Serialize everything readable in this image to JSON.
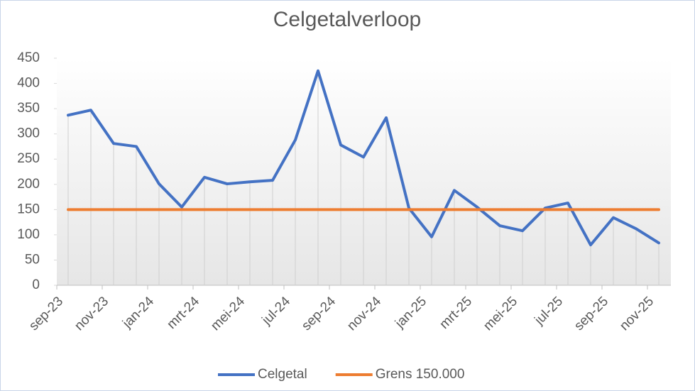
{
  "chart_data": {
    "type": "line",
    "title": "Celgetalverloop",
    "categories": [
      "sep-23",
      null,
      "nov-23",
      null,
      "jan-24",
      null,
      "mrt-24",
      null,
      "mei-24",
      null,
      "jul-24",
      null,
      "sep-24",
      null,
      "nov-24",
      null,
      "jan-25",
      null,
      "mrt-25",
      null,
      "mei-25",
      null,
      "jul-25",
      null,
      "sep-25",
      null,
      "nov-25"
    ],
    "series": [
      {
        "name": "Celgetal",
        "color": "#4472c4",
        "values": [
          337,
          347,
          281,
          275,
          201,
          155,
          214,
          201,
          205,
          208,
          288,
          425,
          278,
          254,
          332,
          153,
          96,
          188,
          155,
          118,
          108,
          153,
          163,
          80,
          134,
          112,
          84
        ]
      },
      {
        "name": "Grens 150.000",
        "color": "#ed7d31",
        "values": [
          150,
          150,
          150,
          150,
          150,
          150,
          150,
          150,
          150,
          150,
          150,
          150,
          150,
          150,
          150,
          150,
          150,
          150,
          150,
          150,
          150,
          150,
          150,
          150,
          150,
          150,
          150
        ]
      }
    ],
    "ylim": [
      0,
      450
    ],
    "yticks": [
      0,
      50,
      100,
      150,
      200,
      250,
      300,
      350,
      400,
      450
    ],
    "drop_lines": true,
    "legend": "bottom"
  }
}
